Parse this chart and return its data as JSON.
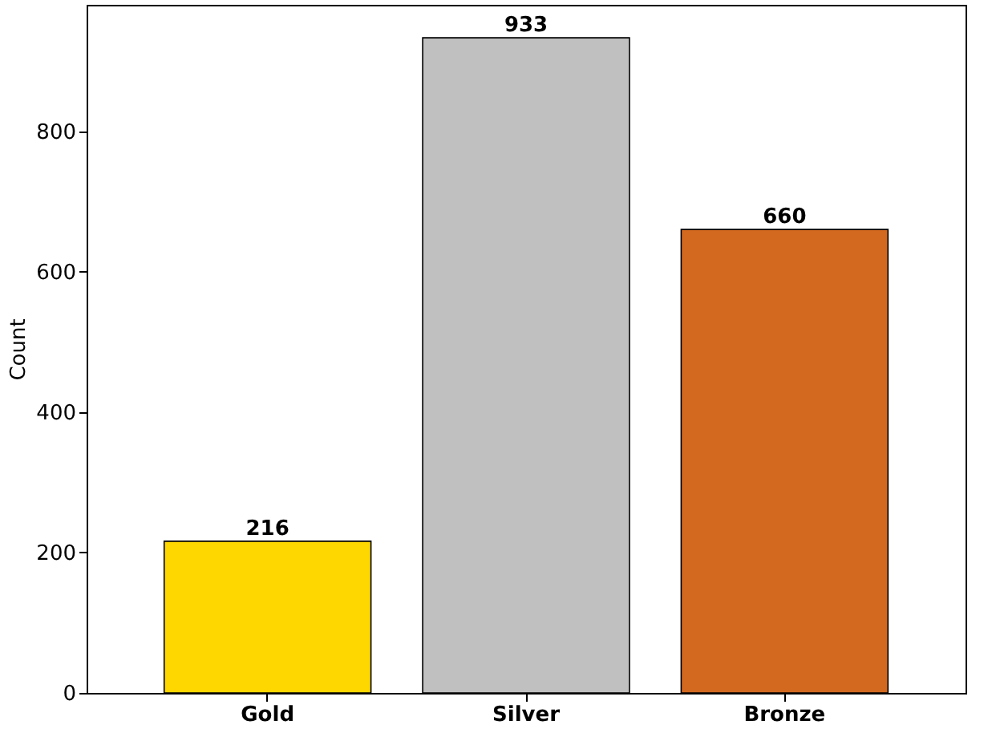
{
  "chart_data": {
    "type": "bar",
    "ylabel": "Count",
    "categories": [
      "Gold",
      "Silver",
      "Bronze"
    ],
    "values": [
      216,
      933,
      660
    ],
    "colors": [
      "#ffd700",
      "#c0c0c0",
      "#d2691e"
    ],
    "ylim": [
      0,
      980
    ],
    "yticks": [
      0,
      200,
      400,
      600,
      800
    ],
    "data_labels": true,
    "grid": false
  }
}
